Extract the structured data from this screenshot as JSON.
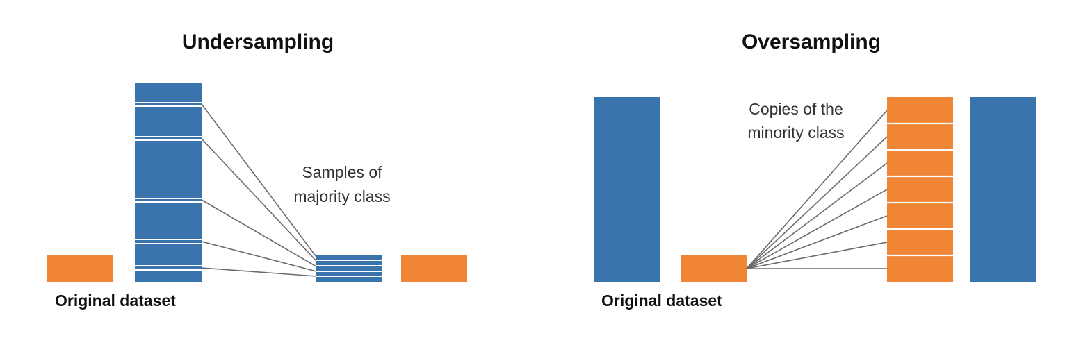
{
  "colors": {
    "majority": "#3a74ad",
    "minority": "#ef8535",
    "connector": "#6a6a6a",
    "divider": "#ffffff",
    "text": "#111111"
  },
  "undersampling": {
    "title": "Undersampling",
    "original_caption": "Original dataset",
    "annotation_line1": "Samples of",
    "annotation_line2": "majority class"
  },
  "oversampling": {
    "title": "Oversampling",
    "original_caption": "Original dataset",
    "annotation_line1": "Copies of the",
    "annotation_line2": "minority class"
  }
}
